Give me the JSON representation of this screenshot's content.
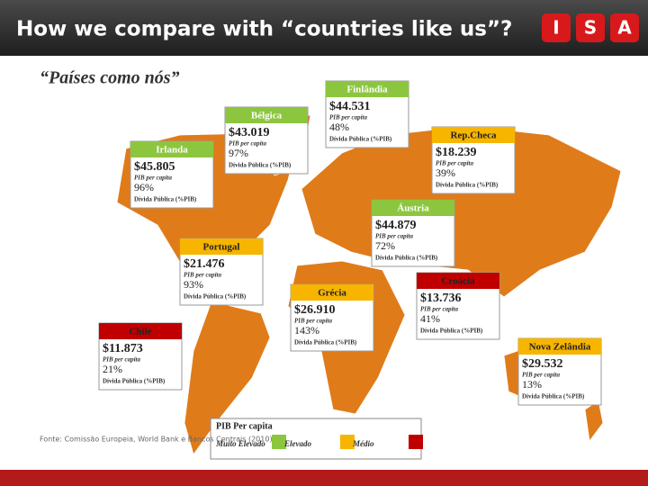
{
  "header": {
    "title": "How we compare with “countries like us”?",
    "logo": [
      "I",
      "S",
      "A"
    ]
  },
  "subtitle": "“Países como nós”",
  "countries": [
    {
      "name": "Finlândia",
      "color": "#8cc63f",
      "gdp": "$44.531",
      "gdp_label": "PIB per capita",
      "debt": "48%",
      "debt_label": "Dívida Pública (%PIB)"
    },
    {
      "name": "Bélgica",
      "color": "#8cc63f",
      "gdp": "$43.019",
      "gdp_label": "PIB per capita",
      "debt": "97%",
      "debt_label": "Dívida Pública (%PIB)"
    },
    {
      "name": "Irlanda",
      "color": "#8cc63f",
      "gdp": "$45.805",
      "gdp_label": "PIB per capita",
      "debt": "96%",
      "debt_label": "Dívida Pública (%PIB)"
    },
    {
      "name": "Rep.Checa",
      "color": "#f7b500",
      "gdp": "$18.239",
      "gdp_label": "PIB per capita",
      "debt": "39%",
      "debt_label": "Dívida Pública (%PIB)"
    },
    {
      "name": "Áustria",
      "color": "#8cc63f",
      "gdp": "$44.879",
      "gdp_label": "PIB per capita",
      "debt": "72%",
      "debt_label": "Dívida Pública (%PIB)"
    },
    {
      "name": "Portugal",
      "color": "#f7b500",
      "gdp": "$21.476",
      "gdp_label": "PIB per capita",
      "debt": "93%",
      "debt_label": "Dívida Pública (%PIB)"
    },
    {
      "name": "Grécia",
      "color": "#f7b500",
      "gdp": "$26.910",
      "gdp_label": "PIB per capita",
      "debt": "143%",
      "debt_label": "Dívida Pública (%PIB)"
    },
    {
      "name": "Croácia",
      "color": "#c00000",
      "gdp": "$13.736",
      "gdp_label": "PIB per capita",
      "debt": "41%",
      "debt_label": "Dívida Pública (%PIB)"
    },
    {
      "name": "Chile",
      "color": "#c00000",
      "gdp": "$11.873",
      "gdp_label": "PIB per capita",
      "debt": "21%",
      "debt_label": "Dívida Pública (%PIB)"
    },
    {
      "name": "Nova Zelândia",
      "color": "#f7b500",
      "gdp": "$29.532",
      "gdp_label": "PIB per capita",
      "debt": "13%",
      "debt_label": "Dívida Pública (%PIB)"
    }
  ],
  "legend": {
    "title": "PIB Per capita",
    "items": [
      {
        "label": "Muito Elevado",
        "color": "#8cc63f"
      },
      {
        "label": "Elevado",
        "color": "#f7b500"
      },
      {
        "label": "Médio",
        "color": "#c00000"
      }
    ]
  },
  "source": "Fonte: Comissão Europeia, World Bank e Bancos Centrais (2010)"
}
